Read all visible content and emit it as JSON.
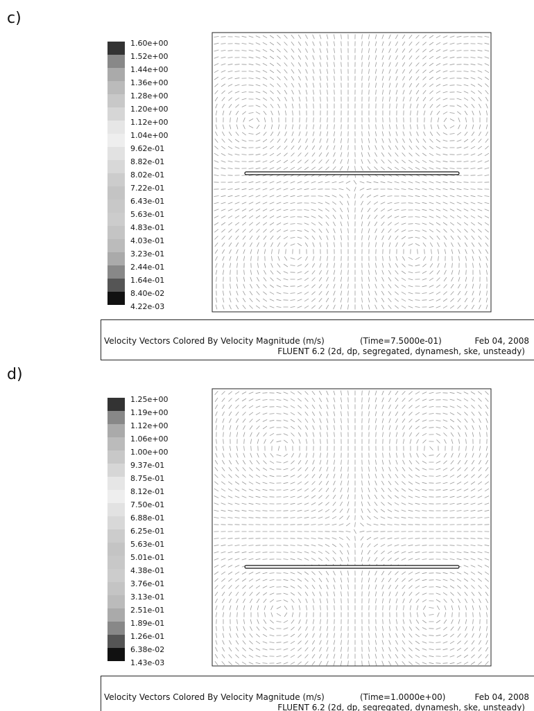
{
  "panels": [
    {
      "label": "c)",
      "legend": [
        "1.60e+00",
        "1.52e+00",
        "1.44e+00",
        "1.36e+00",
        "1.28e+00",
        "1.20e+00",
        "1.12e+00",
        "1.04e+00",
        "9.62e-01",
        "8.82e-01",
        "8.02e-01",
        "7.22e-01",
        "6.43e-01",
        "5.63e-01",
        "4.83e-01",
        "4.03e-01",
        "3.23e-01",
        "2.44e-01",
        "1.64e-01",
        "8.40e-02",
        "4.22e-03"
      ],
      "caption": {
        "title": "Velocity Vectors Colored By Velocity Magnitude (m/s)",
        "time": "(Time=7.5000e-01)",
        "date": "Feb 04, 2008",
        "solver": "FLUENT 6.2 (2d, dp, segregated, dynamesh, ske, unsteady)"
      }
    },
    {
      "label": "d)",
      "legend": [
        "1.25e+00",
        "1.19e+00",
        "1.12e+00",
        "1.06e+00",
        "1.00e+00",
        "9.37e-01",
        "8.75e-01",
        "8.12e-01",
        "7.50e-01",
        "6.88e-01",
        "6.25e-01",
        "5.63e-01",
        "5.01e-01",
        "4.38e-01",
        "3.76e-01",
        "3.13e-01",
        "2.51e-01",
        "1.89e-01",
        "1.26e-01",
        "6.38e-02",
        "1.43e-03"
      ],
      "caption": {
        "title": "Velocity Vectors Colored By Velocity Magnitude (m/s)",
        "time": "(Time=1.0000e+00)",
        "date": "Feb 04, 2008",
        "solver": "FLUENT 6.2 (2d, dp, segregated, dynamesh, ske, unsteady)"
      }
    }
  ]
}
